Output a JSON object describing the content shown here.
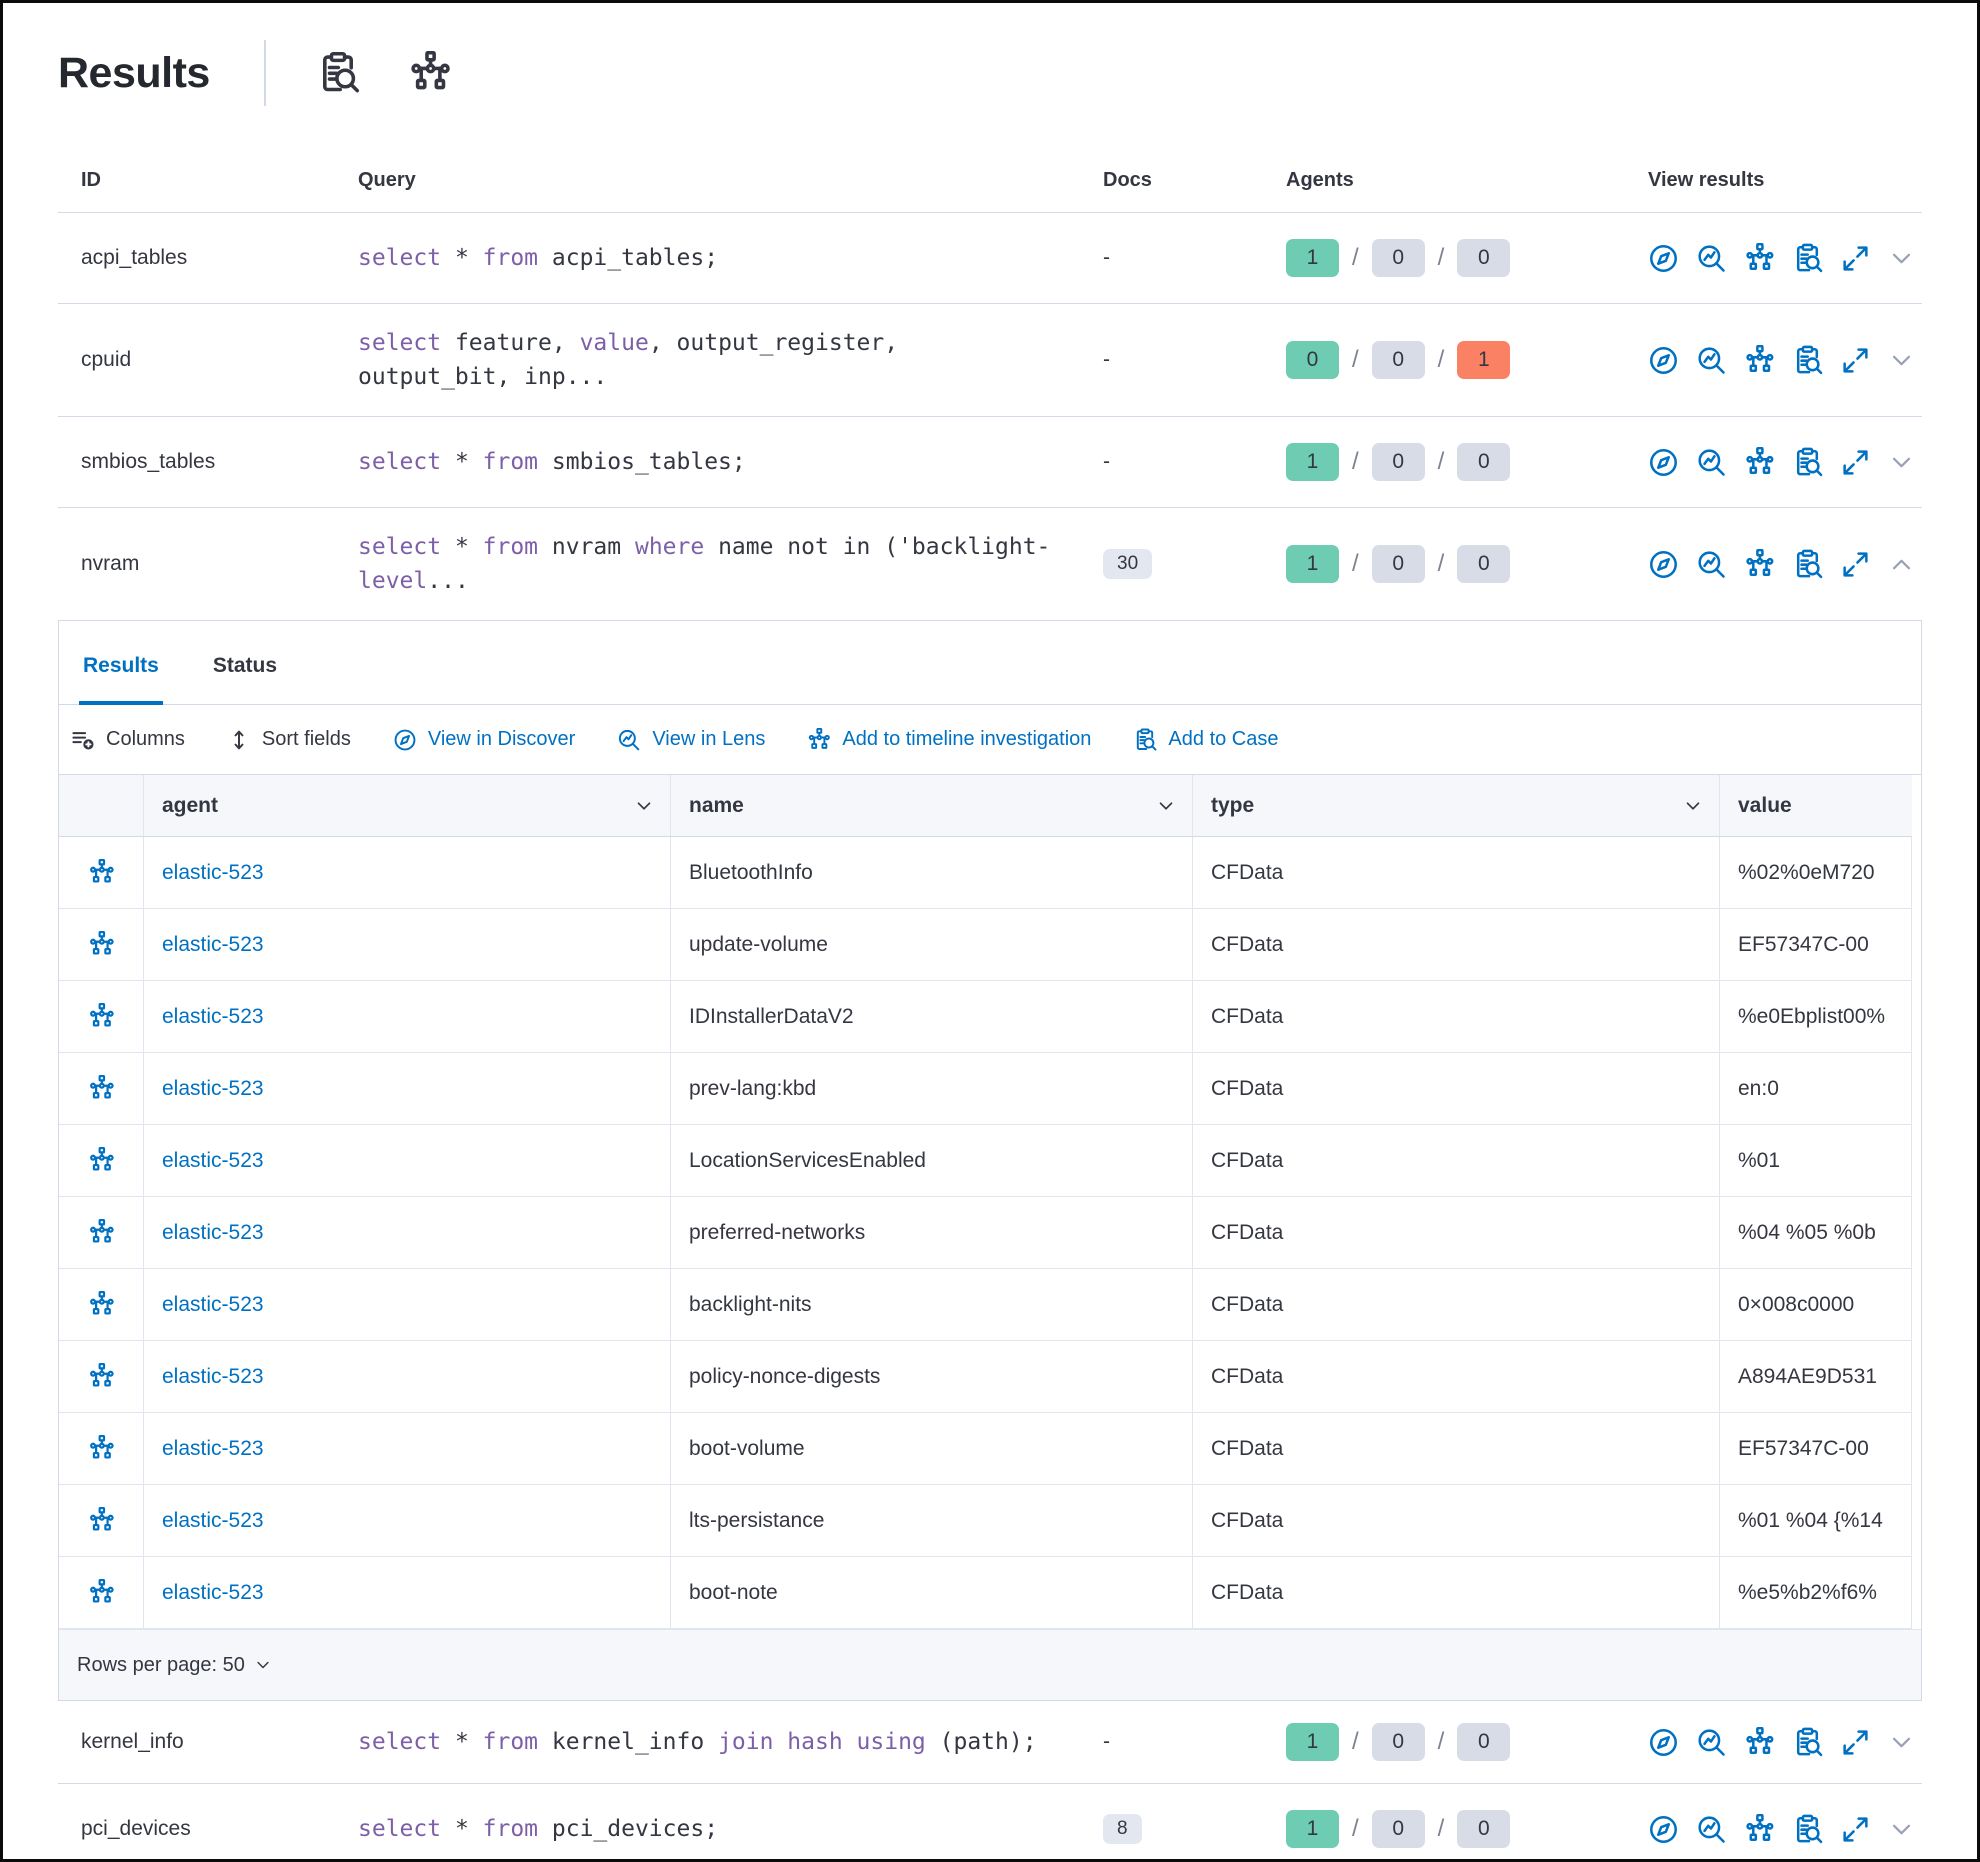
{
  "page": {
    "title": "Results"
  },
  "header": {
    "icons": [
      "inspect-icon",
      "timeline-tree-icon"
    ]
  },
  "queries_table": {
    "headers": {
      "id": "ID",
      "query": "Query",
      "docs": "Docs",
      "agents": "Agents",
      "view_results": "View results"
    },
    "rows_top": [
      {
        "id": "acpi_tables",
        "docs": "-",
        "docs_is_badge": false,
        "expanded": false,
        "agents": {
          "success": "1",
          "pending": "0",
          "failed": "0",
          "failed_alert": false
        },
        "query": [
          [
            "select",
            "k"
          ],
          [
            " * ",
            "p"
          ],
          [
            "from",
            "k"
          ],
          [
            " acpi_tables;",
            "p"
          ]
        ]
      },
      {
        "id": "cpuid",
        "docs": "-",
        "docs_is_badge": false,
        "expanded": false,
        "agents": {
          "success": "0",
          "pending": "0",
          "failed": "1",
          "failed_alert": true
        },
        "query": [
          [
            "select",
            "k"
          ],
          [
            " feature, ",
            "p"
          ],
          [
            "value",
            "k"
          ],
          [
            ", output_register, output_bit, inp...",
            "p"
          ]
        ]
      },
      {
        "id": "smbios_tables",
        "docs": "-",
        "docs_is_badge": false,
        "expanded": false,
        "agents": {
          "success": "1",
          "pending": "0",
          "failed": "0",
          "failed_alert": false
        },
        "query": [
          [
            "select",
            "k"
          ],
          [
            " * ",
            "p"
          ],
          [
            "from",
            "k"
          ],
          [
            " smbios_tables;",
            "p"
          ]
        ]
      },
      {
        "id": "nvram",
        "docs": "30",
        "docs_is_badge": true,
        "expanded": true,
        "agents": {
          "success": "1",
          "pending": "0",
          "failed": "0",
          "failed_alert": false
        },
        "query": [
          [
            "select",
            "k"
          ],
          [
            " * ",
            "p"
          ],
          [
            "from",
            "k"
          ],
          [
            " nvram ",
            "p"
          ],
          [
            "where",
            "k"
          ],
          [
            " name not in ('backlight-",
            "p"
          ],
          [
            "level",
            "k"
          ],
          [
            "...",
            "p"
          ]
        ]
      }
    ],
    "rows_bottom": [
      {
        "id": "kernel_info",
        "docs": "-",
        "docs_is_badge": false,
        "expanded": false,
        "agents": {
          "success": "1",
          "pending": "0",
          "failed": "0",
          "failed_alert": false
        },
        "query": [
          [
            "select",
            "k"
          ],
          [
            " * ",
            "p"
          ],
          [
            "from",
            "k"
          ],
          [
            " kernel_info ",
            "p"
          ],
          [
            "join",
            "k"
          ],
          [
            " ",
            "p"
          ],
          [
            "hash",
            "k"
          ],
          [
            " ",
            "p"
          ],
          [
            "using",
            "k"
          ],
          [
            " (path);",
            "p"
          ]
        ]
      },
      {
        "id": "pci_devices",
        "docs": "8",
        "docs_is_badge": true,
        "expanded": false,
        "agents": {
          "success": "1",
          "pending": "0",
          "failed": "0",
          "failed_alert": false
        },
        "query": [
          [
            "select",
            "k"
          ],
          [
            " * ",
            "p"
          ],
          [
            "from",
            "k"
          ],
          [
            " pci_devices;",
            "p"
          ]
        ]
      }
    ]
  },
  "results_panel": {
    "tabs": [
      {
        "label": "Results",
        "selected": true
      },
      {
        "label": "Status",
        "selected": false
      }
    ],
    "toolbar": [
      {
        "label": "Columns",
        "icon": "columns-icon",
        "primary": false
      },
      {
        "label": "Sort fields",
        "icon": "sort-fields-icon",
        "primary": false
      },
      {
        "label": "View in Discover",
        "icon": "discover-compass-icon",
        "primary": true
      },
      {
        "label": "View in Lens",
        "icon": "lens-magnifier-icon",
        "primary": true
      },
      {
        "label": "Add to timeline investigation",
        "icon": "timeline-tree-icon",
        "primary": true
      },
      {
        "label": "Add to Case",
        "icon": "case-clipboard-icon",
        "primary": true
      }
    ],
    "grid": {
      "columns": [
        "agent",
        "name",
        "type",
        "value"
      ],
      "rows": [
        {
          "agent": "elastic-523",
          "name": "BluetoothInfo",
          "type": "CFData",
          "value": "%02%0eM720"
        },
        {
          "agent": "elastic-523",
          "name": "update-volume",
          "type": "CFData",
          "value": "EF57347C-00"
        },
        {
          "agent": "elastic-523",
          "name": "IDInstallerDataV2",
          "type": "CFData",
          "value": "%e0Ebplist00%"
        },
        {
          "agent": "elastic-523",
          "name": "prev-lang:kbd",
          "type": "CFData",
          "value": "en:0"
        },
        {
          "agent": "elastic-523",
          "name": "LocationServicesEnabled",
          "type": "CFData",
          "value": "%01"
        },
        {
          "agent": "elastic-523",
          "name": "preferred-networks",
          "type": "CFData",
          "value": "%04 %05 %0b"
        },
        {
          "agent": "elastic-523",
          "name": "backlight-nits",
          "type": "CFData",
          "value": "0×008c0000"
        },
        {
          "agent": "elastic-523",
          "name": "policy-nonce-digests",
          "type": "CFData",
          "value": "A894AE9D531"
        },
        {
          "agent": "elastic-523",
          "name": "boot-volume",
          "type": "CFData",
          "value": "EF57347C-00"
        },
        {
          "agent": "elastic-523",
          "name": "lts-persistance",
          "type": "CFData",
          "value": "%01 %04 {%14"
        },
        {
          "agent": "elastic-523",
          "name": "boot-note",
          "type": "CFData",
          "value": "%e5%b2%f6%"
        }
      ]
    },
    "footer": {
      "rows_per_page": "Rows per page: 50"
    }
  },
  "colors": {
    "primary_blue": "#0071C2",
    "keyword_purple": "#7D5FA8",
    "success_badge": "#6DCCB1",
    "default_badge": "#D7DCE7",
    "danger_badge": "#FB8164",
    "docs_badge_bg": "#E3E7EF",
    "text": "#343741",
    "border": "#D3DAE6",
    "chevron_gray": "#98A2B3"
  }
}
